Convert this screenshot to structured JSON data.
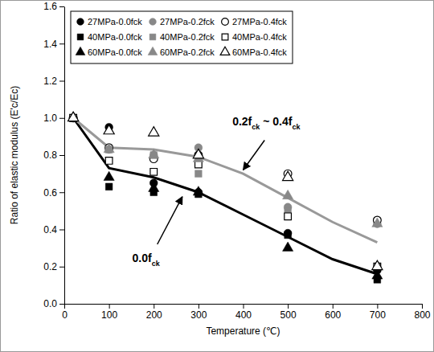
{
  "chart_data": {
    "type": "scatter",
    "x_label": "Temperature (℃)",
    "y_label": "Ratio of elastic modulus (E'c/Ec)",
    "xlim": [
      0,
      800
    ],
    "xticks": [
      0,
      100,
      200,
      300,
      400,
      500,
      600,
      700,
      800
    ],
    "ylim": [
      0,
      1.6
    ],
    "yticks": [
      {
        "value": 0,
        "label": "0.0"
      },
      0.2,
      0.4,
      0.6,
      0.8,
      {
        "value": 1,
        "label": "1.0"
      },
      1.2,
      1.4,
      1.6
    ],
    "grid": false,
    "legend": "upper left",
    "series": [
      {
        "name": "27MPa-0.0fck",
        "type": "scatter",
        "marker": "circle",
        "color": "#000000",
        "x": [
          20,
          100,
          200,
          300,
          500,
          700
        ],
        "values": [
          1.0,
          0.95,
          0.65,
          0.6,
          0.38,
          0.18
        ]
      },
      {
        "name": "27MPa-0.2fck",
        "type": "scatter",
        "marker": "circle",
        "color": "#888888",
        "x": [
          20,
          100,
          200,
          300,
          500,
          700
        ],
        "values": [
          1.0,
          0.83,
          0.8,
          0.84,
          0.52,
          0.43
        ]
      },
      {
        "name": "27MPa-0.4fck",
        "type": "scatter",
        "marker": "circle-open",
        "color": "#000000",
        "x": [
          20,
          100,
          200,
          300,
          500,
          700
        ],
        "values": [
          1.0,
          0.84,
          0.78,
          0.8,
          0.7,
          0.45
        ]
      },
      {
        "name": "40MPa-0.0fck",
        "type": "scatter",
        "marker": "square",
        "color": "#000000",
        "x": [
          20,
          100,
          200,
          300,
          500,
          700
        ],
        "values": [
          1.0,
          0.63,
          0.6,
          0.59,
          0.37,
          0.13
        ]
      },
      {
        "name": "40MPa-0.2fck",
        "type": "scatter",
        "marker": "square",
        "color": "#888888",
        "x": [
          20,
          100,
          200,
          300,
          500,
          700
        ],
        "values": [
          1.0,
          0.83,
          0.8,
          0.7,
          0.5,
          0.2
        ]
      },
      {
        "name": "40MPa-0.4fck",
        "type": "scatter",
        "marker": "square-open",
        "color": "#000000",
        "x": [
          20,
          100,
          200,
          300,
          500,
          700
        ],
        "values": [
          1.0,
          0.77,
          0.71,
          0.75,
          0.47,
          0.2
        ]
      },
      {
        "name": "60MPa-0.0fck",
        "type": "scatter",
        "marker": "triangle",
        "color": "#000000",
        "x": [
          20,
          100,
          200,
          300,
          500,
          700
        ],
        "values": [
          1.0,
          0.68,
          0.62,
          0.6,
          0.3,
          0.15
        ]
      },
      {
        "name": "60MPa-0.2fck",
        "type": "scatter",
        "marker": "triangle",
        "color": "#888888",
        "x": [
          20,
          100,
          200,
          300,
          500,
          700
        ],
        "values": [
          1.0,
          0.83,
          0.8,
          0.78,
          0.58,
          0.43
        ]
      },
      {
        "name": "60MPa-0.4fck",
        "type": "scatter",
        "marker": "triangle-open",
        "color": "#000000",
        "x": [
          20,
          100,
          200,
          300,
          500,
          700
        ],
        "values": [
          1.0,
          0.93,
          0.92,
          0.8,
          0.68,
          0.2
        ]
      },
      {
        "name": "0.0fck",
        "type": "line",
        "line_style": "solid",
        "color": "#000000",
        "x": [
          20,
          100,
          200,
          300,
          400,
          500,
          600,
          700
        ],
        "values": [
          1.0,
          0.73,
          0.68,
          0.6,
          0.48,
          0.36,
          0.24,
          0.16
        ]
      },
      {
        "name": "0.2fck ~ 0.4fck",
        "type": "line",
        "line_style": "solid",
        "color": "#999999",
        "x": [
          20,
          100,
          200,
          300,
          400,
          500,
          600,
          700
        ],
        "values": [
          1.0,
          0.84,
          0.83,
          0.79,
          0.7,
          0.57,
          0.44,
          0.33
        ]
      }
    ]
  }
}
